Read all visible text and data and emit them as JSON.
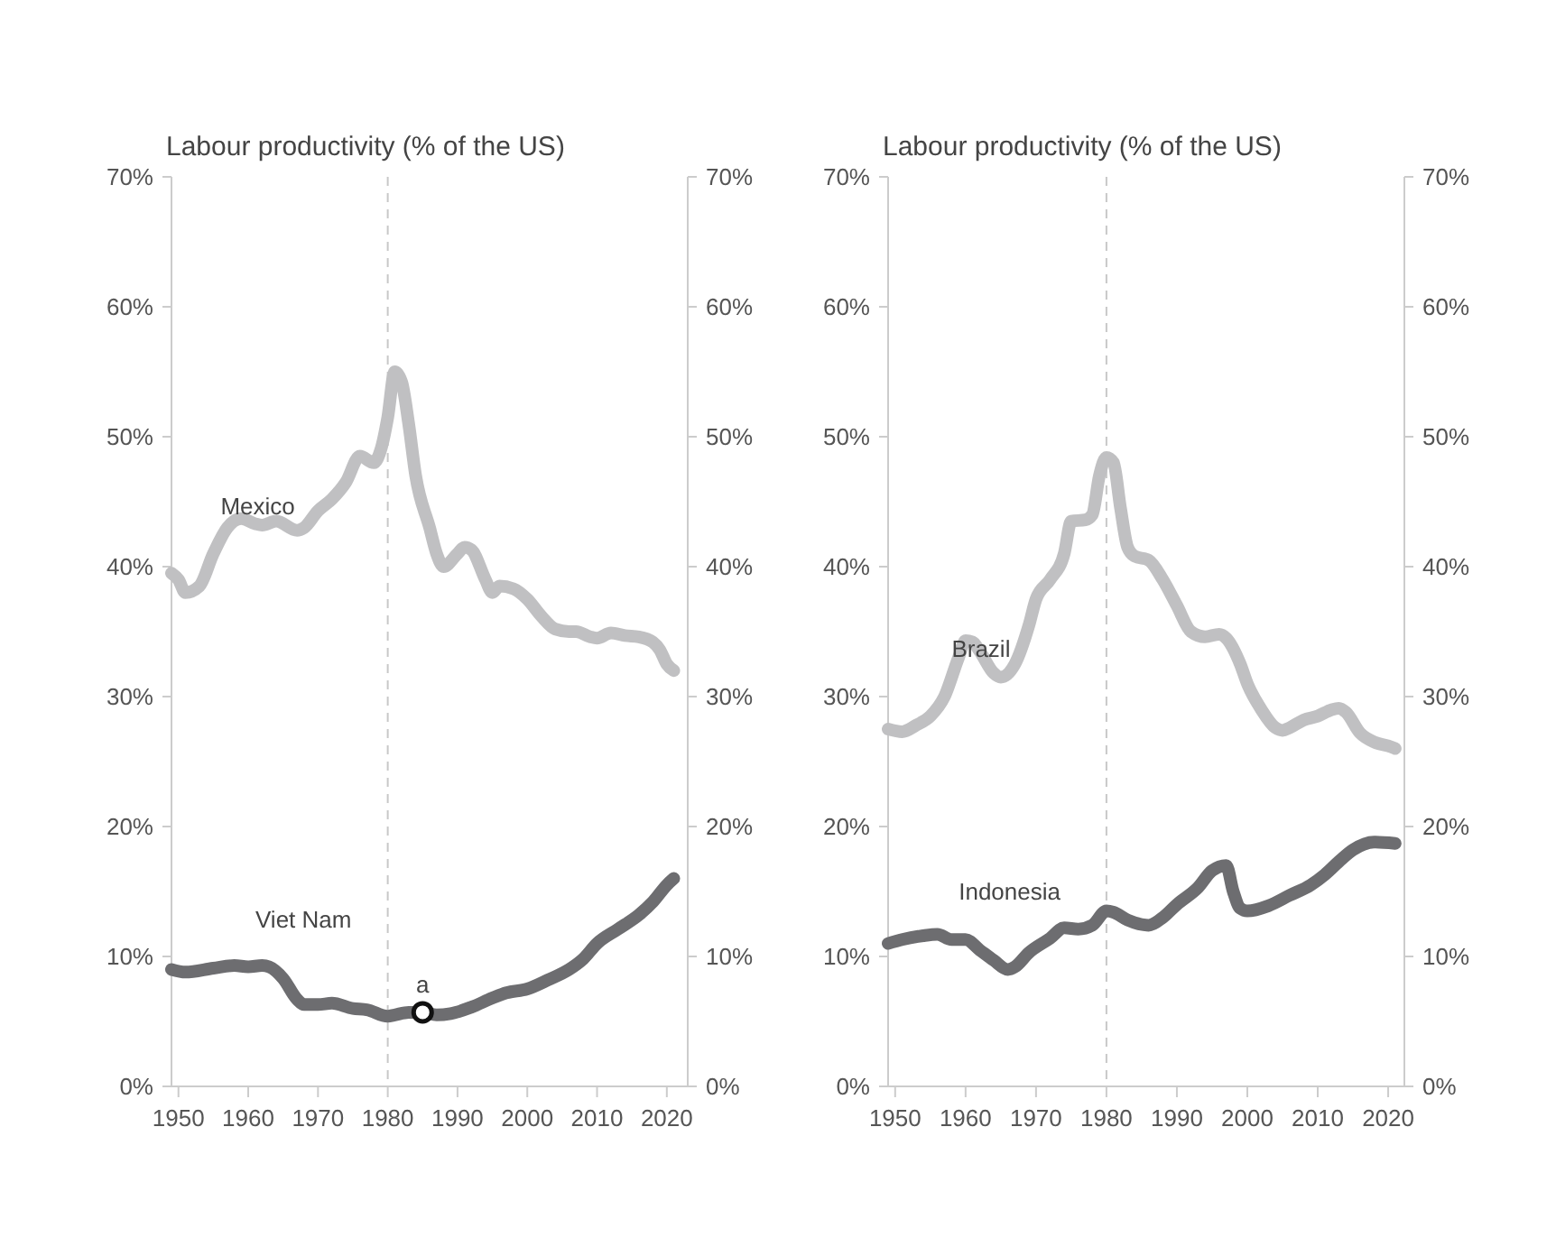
{
  "chart_data": [
    {
      "type": "line",
      "title": "Labour productivity (% of the US)",
      "xlim": [
        1949,
        2023
      ],
      "xticks": [
        1950,
        1960,
        1970,
        1980,
        1990,
        2000,
        2010,
        2020
      ],
      "ylim": [
        0,
        70
      ],
      "yticks": [
        {
          "value": 0,
          "label": "0%"
        },
        {
          "value": 10,
          "label": "10%"
        },
        {
          "value": 20,
          "label": "20%"
        },
        {
          "value": 30,
          "label": "30%"
        },
        {
          "value": 40,
          "label": "40%"
        },
        {
          "value": 50,
          "label": "50%"
        },
        {
          "value": 60,
          "label": "60%"
        },
        {
          "value": 70,
          "label": "70%"
        }
      ],
      "y2lim": [
        0,
        70
      ],
      "y2ticks": [
        {
          "value": 0,
          "label": "0%"
        },
        {
          "value": 10,
          "label": "10%"
        },
        {
          "value": 20,
          "label": "20%"
        },
        {
          "value": 30,
          "label": "30%"
        },
        {
          "value": 40,
          "label": "40%"
        },
        {
          "value": 50,
          "label": "50%"
        },
        {
          "value": 60,
          "label": "60%"
        },
        {
          "value": 70,
          "label": "70%"
        }
      ],
      "grid": false,
      "marker": "none",
      "line_style": "solid",
      "ref_lines": [
        {
          "axis": "x",
          "value": 1980,
          "color": "#c8c8c8",
          "line_style": "dashed"
        }
      ],
      "annotations": [
        {
          "text": "a",
          "x": 1985,
          "y": 5.7
        }
      ],
      "series": [
        {
          "name": "Mexico",
          "color": "#c0c0c2",
          "x": [
            1949,
            1950,
            1951,
            1953,
            1955,
            1957,
            1959,
            1961,
            1962,
            1964,
            1967,
            1968,
            1970,
            1972,
            1974,
            1976,
            1978,
            1979,
            1980,
            1981,
            1982,
            1983,
            1984,
            1986,
            1987,
            1988,
            1990,
            1991,
            1992,
            1994,
            1995,
            1996,
            1998,
            2000,
            2002,
            2004,
            2006,
            2007,
            2009,
            2010,
            2012,
            2014,
            2016,
            2018,
            2019,
            2020,
            2021
          ],
          "values": [
            39.5,
            39,
            38,
            38.5,
            41,
            43,
            43.7,
            43.3,
            43.2,
            43.5,
            42.8,
            43,
            44.3,
            45.2,
            46.5,
            48.5,
            48,
            49,
            51.5,
            55,
            54.2,
            51,
            47,
            43,
            41,
            40,
            41,
            41.5,
            41.3,
            39,
            38,
            38.5,
            38.3,
            37.5,
            36.2,
            35.2,
            35,
            35,
            34.6,
            34.5,
            34.9,
            34.7,
            34.6,
            34.2,
            33.6,
            32.5,
            32
          ]
        },
        {
          "name": "Viet Nam",
          "color": "#6d6d70",
          "x": [
            1949,
            1951,
            1955,
            1958,
            1960,
            1962,
            1963,
            1965,
            1967,
            1968,
            1970,
            1972,
            1975,
            1977,
            1980,
            1981,
            1983,
            1985,
            1987,
            1989,
            1992,
            1995,
            1997,
            2000,
            2003,
            2006,
            2008,
            2010,
            2013,
            2016,
            2018,
            2020,
            2021
          ],
          "values": [
            9,
            8.8,
            9.1,
            9.3,
            9.2,
            9.3,
            9.2,
            8.3,
            6.7,
            6.3,
            6.3,
            6.4,
            6,
            5.9,
            5.4,
            5.5,
            5.7,
            5.7,
            5.5,
            5.6,
            6.1,
            6.8,
            7.2,
            7.5,
            8.2,
            9,
            9.8,
            11,
            12.1,
            13.2,
            14.2,
            15.5,
            16
          ]
        }
      ]
    },
    {
      "type": "line",
      "title": "Labour productivity (% of the US)",
      "xlim": [
        1949,
        2022.3
      ],
      "xticks": [
        1950,
        1960,
        1970,
        1980,
        1990,
        2000,
        2010,
        2020
      ],
      "ylim": [
        0,
        70
      ],
      "yticks": [
        {
          "value": 0,
          "label": "0%"
        },
        {
          "value": 10,
          "label": "10%"
        },
        {
          "value": 20,
          "label": "20%"
        },
        {
          "value": 30,
          "label": "30%"
        },
        {
          "value": 40,
          "label": "40%"
        },
        {
          "value": 50,
          "label": "50%"
        },
        {
          "value": 60,
          "label": "60%"
        },
        {
          "value": 70,
          "label": "70%"
        }
      ],
      "y2lim": [
        0,
        70
      ],
      "y2ticks": [
        {
          "value": 0,
          "label": "0%"
        },
        {
          "value": 10,
          "label": "10%"
        },
        {
          "value": 20,
          "label": "20%"
        },
        {
          "value": 30,
          "label": "30%"
        },
        {
          "value": 40,
          "label": "40%"
        },
        {
          "value": 50,
          "label": "50%"
        },
        {
          "value": 60,
          "label": "60%"
        },
        {
          "value": 70,
          "label": "70%"
        }
      ],
      "grid": false,
      "marker": "none",
      "line_style": "solid",
      "ref_lines": [
        {
          "axis": "x",
          "value": 1980,
          "color": "#c8c8c8",
          "line_style": "dashed"
        }
      ],
      "series": [
        {
          "name": "Brazil",
          "color": "#c0c0c2",
          "x": [
            1949,
            1951,
            1953,
            1955,
            1957,
            1959,
            1960,
            1961,
            1962,
            1964,
            1965,
            1967,
            1969,
            1970,
            1972,
            1974,
            1975,
            1977,
            1978,
            1979,
            1980,
            1981,
            1982,
            1983,
            1984,
            1986,
            1988,
            1990,
            1992,
            1994,
            1996,
            1997,
            1999,
            2000,
            2002,
            2004,
            2005,
            2006,
            2008,
            2010,
            2012,
            2013,
            2014,
            2016,
            2018,
            2020,
            2021
          ],
          "values": [
            27.5,
            27.3,
            27.8,
            28.5,
            30,
            33,
            34.3,
            34.2,
            33.5,
            31.8,
            31.5,
            32.5,
            35.5,
            37.5,
            39,
            41,
            43.5,
            43.6,
            44,
            47,
            48.4,
            48,
            44.5,
            41.5,
            40.8,
            40.5,
            39,
            37,
            35,
            34.6,
            34.8,
            34.5,
            32.5,
            31,
            29,
            27.6,
            27.4,
            27.6,
            28.2,
            28.5,
            29,
            29.1,
            28.8,
            27.2,
            26.5,
            26.2,
            26
          ]
        },
        {
          "name": "Indonesia",
          "color": "#6d6d70",
          "x": [
            1949,
            1951,
            1954,
            1956,
            1958,
            1960,
            1962,
            1964,
            1966,
            1967,
            1969,
            1972,
            1974,
            1976,
            1978,
            1980,
            1981,
            1983,
            1986,
            1988,
            1990,
            1993,
            1995,
            1997,
            1998,
            1999,
            2000,
            2003,
            2006,
            2009,
            2011,
            2013,
            2015,
            2018,
            2021
          ],
          "values": [
            11,
            11.3,
            11.6,
            11.7,
            11.3,
            11.3,
            10.5,
            9.7,
            9,
            9.2,
            10.3,
            11.4,
            12.2,
            12.1,
            12.4,
            13.5,
            13.4,
            12.8,
            12.4,
            13,
            14,
            15.3,
            16.6,
            17,
            15,
            13.7,
            13.5,
            13.9,
            14.7,
            15.5,
            16.3,
            17.3,
            18.2,
            18.8,
            18.7
          ]
        }
      ]
    }
  ]
}
